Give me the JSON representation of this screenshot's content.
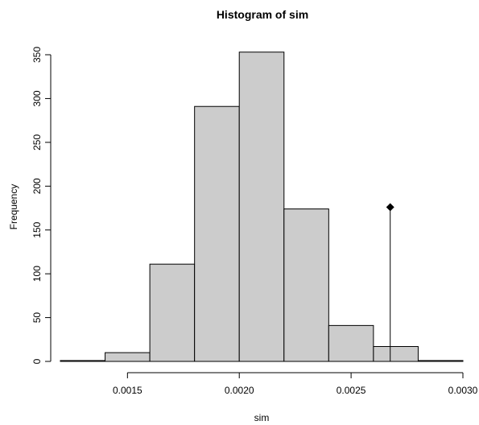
{
  "chart_data": {
    "type": "histogram",
    "title": "Histogram of sim",
    "xlabel": "sim",
    "ylabel": "Frequency",
    "bins": [
      {
        "start": 0.0012,
        "end": 0.0014,
        "count": 1
      },
      {
        "start": 0.0014,
        "end": 0.0016,
        "count": 10
      },
      {
        "start": 0.0016,
        "end": 0.0018,
        "count": 111
      },
      {
        "start": 0.0018,
        "end": 0.002,
        "count": 291
      },
      {
        "start": 0.002,
        "end": 0.0022,
        "count": 353
      },
      {
        "start": 0.0022,
        "end": 0.0024,
        "count": 174
      },
      {
        "start": 0.0024,
        "end": 0.0026,
        "count": 41
      },
      {
        "start": 0.0026,
        "end": 0.0028,
        "count": 17
      },
      {
        "start": 0.0028,
        "end": 0.003,
        "count": 1
      }
    ],
    "xlim": [
      0.0012,
      0.003
    ],
    "ylim": [
      0,
      353
    ],
    "x_ticks": [
      0.0015,
      0.002,
      0.0025,
      0.003
    ],
    "x_tick_labels": [
      "0.0015",
      "0.0020",
      "0.0025",
      "0.0030"
    ],
    "y_ticks": [
      0,
      50,
      100,
      150,
      200,
      250,
      300,
      350
    ],
    "y_tick_labels": [
      "0",
      "50",
      "100",
      "150",
      "200",
      "250",
      "300",
      "350"
    ],
    "observed": {
      "x": 0.002675,
      "y": 176
    },
    "grid": false,
    "colors": {
      "bar_fill": "#cccccc",
      "bar_stroke": "#000000",
      "marker": "#000000"
    }
  }
}
